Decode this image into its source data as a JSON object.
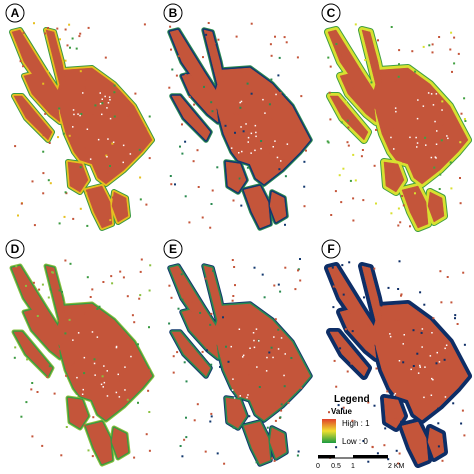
{
  "panels": [
    {
      "label": "A"
    },
    {
      "label": "B"
    },
    {
      "label": "C"
    },
    {
      "label": "D"
    },
    {
      "label": "E"
    },
    {
      "label": "F"
    }
  ],
  "legend": {
    "title": "Legend",
    "subtitle": "Value",
    "high": "High : 1",
    "low": "Low : 0"
  },
  "scale_bar": {
    "ticks": [
      "0",
      "0.5",
      "1",
      "2 KM"
    ]
  }
}
